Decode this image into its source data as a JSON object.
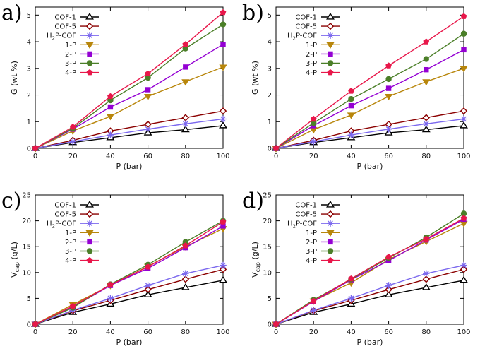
{
  "chart_data": [
    {
      "type": "line",
      "panel_label": "a)",
      "xlabel": "P (bar)",
      "ylabel": "G (wt %)",
      "xlim": [
        0,
        100
      ],
      "ylim": [
        0,
        5.3
      ],
      "xticks": [
        "0",
        "20",
        "40",
        "60",
        "80",
        "100"
      ],
      "yticks": [
        "0",
        "1",
        "2",
        "3",
        "4",
        "5"
      ],
      "legend": "top-left",
      "x": [
        0,
        20,
        40,
        60,
        80,
        100
      ],
      "series": [
        {
          "name": "COF-1",
          "values": [
            0,
            0.22,
            0.4,
            0.58,
            0.7,
            0.85
          ]
        },
        {
          "name": "COF-5",
          "values": [
            0,
            0.3,
            0.65,
            0.9,
            1.15,
            1.4
          ]
        },
        {
          "name": "H2P-COF",
          "values": [
            0,
            0.25,
            0.5,
            0.72,
            0.92,
            1.1
          ]
        },
        {
          "name": "1-P",
          "values": [
            0,
            0.65,
            1.2,
            1.95,
            2.5,
            3.05
          ]
        },
        {
          "name": "2-P",
          "values": [
            0,
            0.72,
            1.55,
            2.2,
            3.05,
            3.9
          ]
        },
        {
          "name": "3-P",
          "values": [
            0,
            0.75,
            1.8,
            2.65,
            3.75,
            4.65
          ]
        },
        {
          "name": "4-P",
          "values": [
            0,
            0.8,
            1.95,
            2.8,
            3.9,
            5.1
          ]
        }
      ]
    },
    {
      "type": "line",
      "panel_label": "b)",
      "xlabel": "P (bar)",
      "ylabel": "G (wt %)",
      "xlim": [
        0,
        100
      ],
      "ylim": [
        0,
        5.3
      ],
      "xticks": [
        "0",
        "20",
        "40",
        "60",
        "80",
        "100"
      ],
      "yticks": [
        "0",
        "1",
        "2",
        "3",
        "4",
        "5"
      ],
      "legend": "top-left",
      "x": [
        0,
        20,
        40,
        60,
        80,
        100
      ],
      "series": [
        {
          "name": "COF-1",
          "values": [
            0,
            0.22,
            0.4,
            0.58,
            0.7,
            0.85
          ]
        },
        {
          "name": "COF-5",
          "values": [
            0,
            0.3,
            0.65,
            0.9,
            1.15,
            1.4
          ]
        },
        {
          "name": "H2P-COF",
          "values": [
            0,
            0.25,
            0.5,
            0.72,
            0.92,
            1.1
          ]
        },
        {
          "name": "1-P",
          "values": [
            0,
            0.7,
            1.25,
            1.95,
            2.5,
            3.0
          ]
        },
        {
          "name": "2-P",
          "values": [
            0,
            0.85,
            1.6,
            2.25,
            2.95,
            3.7
          ]
        },
        {
          "name": "3-P",
          "values": [
            0,
            0.95,
            1.85,
            2.6,
            3.35,
            4.3
          ]
        },
        {
          "name": "4-P",
          "values": [
            0,
            1.1,
            2.15,
            3.1,
            4.0,
            4.95
          ]
        }
      ]
    },
    {
      "type": "line",
      "panel_label": "c)",
      "xlabel": "P (bar)",
      "ylabel": "Vcap (g/L)",
      "xlim": [
        0,
        100
      ],
      "ylim": [
        0,
        25
      ],
      "xticks": [
        "0",
        "20",
        "40",
        "60",
        "80",
        "100"
      ],
      "yticks": [
        "0",
        "5",
        "10",
        "15",
        "20",
        "25"
      ],
      "legend": "top-left",
      "x": [
        0,
        20,
        40,
        60,
        80,
        100
      ],
      "series": [
        {
          "name": "COF-1",
          "values": [
            0,
            2.3,
            3.9,
            5.7,
            7.1,
            8.5
          ]
        },
        {
          "name": "COF-5",
          "values": [
            0,
            2.6,
            4.6,
            6.7,
            8.7,
            10.6
          ]
        },
        {
          "name": "H2P-COF",
          "values": [
            0,
            2.7,
            5.0,
            7.5,
            9.8,
            11.4
          ]
        },
        {
          "name": "1-P",
          "values": [
            0,
            3.8,
            7.5,
            11.2,
            15.0,
            18.5
          ]
        },
        {
          "name": "2-P",
          "values": [
            0,
            3.3,
            7.5,
            10.8,
            14.8,
            19.0
          ]
        },
        {
          "name": "3-P",
          "values": [
            0,
            3.2,
            7.7,
            11.5,
            15.9,
            20.0
          ]
        },
        {
          "name": "4-P",
          "values": [
            0,
            3.5,
            7.6,
            11.1,
            15.2,
            19.8
          ]
        }
      ]
    },
    {
      "type": "line",
      "panel_label": "d)",
      "xlabel": "P (bar)",
      "ylabel": "Vcap (g/L)",
      "xlim": [
        0,
        100
      ],
      "ylim": [
        0,
        25
      ],
      "xticks": [
        "0",
        "20",
        "40",
        "60",
        "80",
        "100"
      ],
      "yticks": [
        "0",
        "5",
        "10",
        "15",
        "20",
        "25"
      ],
      "legend": "top-left",
      "x": [
        0,
        20,
        40,
        60,
        80,
        100
      ],
      "series": [
        {
          "name": "COF-1",
          "values": [
            0,
            2.3,
            3.9,
            5.7,
            7.1,
            8.5
          ]
        },
        {
          "name": "COF-5",
          "values": [
            0,
            2.6,
            4.6,
            6.7,
            8.7,
            10.6
          ]
        },
        {
          "name": "H2P-COF",
          "values": [
            0,
            2.7,
            5.0,
            7.5,
            9.8,
            11.4
          ]
        },
        {
          "name": "1-P",
          "values": [
            0,
            4.5,
            8.0,
            12.5,
            16.0,
            19.5
          ]
        },
        {
          "name": "2-P",
          "values": [
            0,
            4.4,
            8.6,
            12.3,
            16.3,
            20.3
          ]
        },
        {
          "name": "3-P",
          "values": [
            0,
            4.7,
            8.7,
            12.8,
            16.8,
            21.4
          ]
        },
        {
          "name": "4-P",
          "values": [
            0,
            4.5,
            8.8,
            13.0,
            16.5,
            20.5
          ]
        }
      ]
    }
  ],
  "styles": [
    {
      "color": "#000000",
      "marker": "triangle-open"
    },
    {
      "color": "#8b0000",
      "marker": "diamond-open"
    },
    {
      "color": "#7b68ee",
      "marker": "asterisk"
    },
    {
      "color": "#b8860b",
      "marker": "triangle-down"
    },
    {
      "color": "#9400d3",
      "marker": "square"
    },
    {
      "color": "#4b7f28",
      "marker": "circle"
    },
    {
      "color": "#e8174a",
      "marker": "pentagon"
    }
  ]
}
